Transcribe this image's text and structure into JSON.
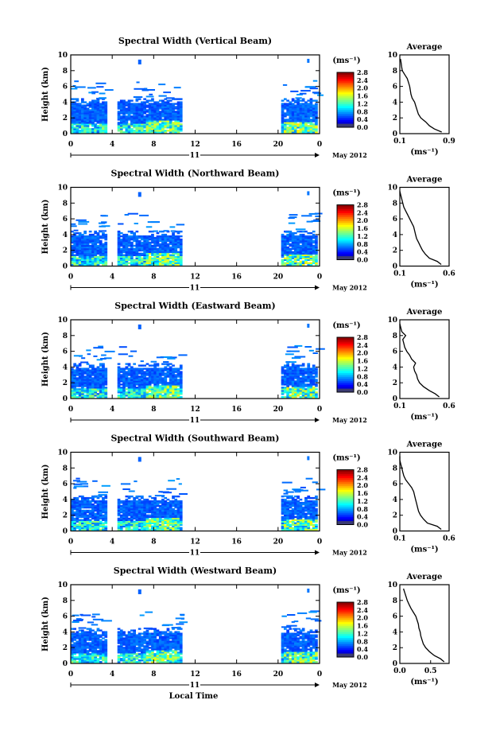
{
  "chart_data": {
    "type": "heatmap",
    "month_label": "May 2012",
    "day_label": "11",
    "xlabel": "Local Time",
    "x_ticks": [
      "0",
      "4",
      "8",
      "12",
      "16",
      "20",
      "0"
    ],
    "xlim": [
      0,
      24
    ],
    "ylabel": "Height (km)",
    "y_ticks": [
      "0",
      "2",
      "4",
      "6",
      "8",
      "10"
    ],
    "ylim": [
      0,
      10
    ],
    "colorbar": {
      "unit": "(ms⁻¹)",
      "ticks": [
        "0.0",
        "0.4",
        "0.8",
        "1.2",
        "1.6",
        "2.0",
        "2.4",
        "2.8"
      ],
      "range": [
        0.0,
        2.8
      ]
    },
    "average_title": "Average",
    "average_xlabel": "(ms⁻¹)",
    "panels": [
      {
        "title": "Spectral Width (Vertical Beam)",
        "avg_ticks": [
          "0.1",
          "0.9"
        ],
        "avg_xlim": [
          0.1,
          0.9
        ],
        "avg_profile": {
          "height": [
            0.2,
            0.6,
            1.0,
            1.5,
            2.0,
            2.5,
            3.0,
            3.5,
            4.0,
            4.5,
            5.0,
            5.5,
            6.0,
            6.5,
            7.0,
            7.5,
            8.0,
            8.5,
            9.0,
            9.5
          ],
          "width": [
            0.78,
            0.66,
            0.58,
            0.52,
            0.44,
            0.4,
            0.38,
            0.36,
            0.34,
            0.3,
            0.28,
            0.27,
            0.26,
            0.24,
            0.22,
            0.18,
            0.14,
            0.13,
            0.12,
            0.11
          ]
        }
      },
      {
        "title": "Spectral Width (Northward Beam)",
        "avg_ticks": [
          "0.1",
          "0.6"
        ],
        "avg_xlim": [
          0.1,
          0.6
        ],
        "avg_profile": {
          "height": [
            0.2,
            0.6,
            1.0,
            1.5,
            2.0,
            2.5,
            3.0,
            3.5,
            4.0,
            4.5,
            5.0,
            5.5,
            6.0,
            6.5,
            7.0,
            7.5,
            8.0,
            8.5,
            9.0,
            9.5
          ],
          "width": [
            0.52,
            0.48,
            0.4,
            0.36,
            0.33,
            0.31,
            0.29,
            0.27,
            0.26,
            0.25,
            0.24,
            0.22,
            0.2,
            0.18,
            0.16,
            0.14,
            0.13,
            0.12,
            0.11,
            0.1
          ]
        }
      },
      {
        "title": "Spectral Width (Eastward Beam)",
        "avg_ticks": [
          "0.1",
          "0.6"
        ],
        "avg_xlim": [
          0.1,
          0.6
        ],
        "avg_profile": {
          "height": [
            0.2,
            0.6,
            1.0,
            1.5,
            2.0,
            2.5,
            3.0,
            3.5,
            4.0,
            4.5,
            5.0,
            5.5,
            6.0,
            6.5,
            7.0,
            7.5,
            8.0,
            8.5,
            9.0,
            9.5
          ],
          "width": [
            0.5,
            0.46,
            0.4,
            0.34,
            0.3,
            0.28,
            0.27,
            0.25,
            0.24,
            0.26,
            0.22,
            0.2,
            0.17,
            0.15,
            0.14,
            0.13,
            0.16,
            0.12,
            0.11,
            0.1
          ]
        }
      },
      {
        "title": "Spectral Width (Southward Beam)",
        "avg_ticks": [
          "0.1",
          "0.6"
        ],
        "avg_xlim": [
          0.1,
          0.6
        ],
        "avg_profile": {
          "height": [
            0.2,
            0.6,
            1.0,
            1.5,
            2.0,
            2.5,
            3.0,
            3.5,
            4.0,
            4.5,
            5.0,
            5.5,
            6.0,
            6.5,
            7.0,
            7.5,
            8.0,
            8.5,
            9.0,
            9.5
          ],
          "width": [
            0.52,
            0.48,
            0.38,
            0.34,
            0.31,
            0.29,
            0.28,
            0.27,
            0.26,
            0.25,
            0.24,
            0.22,
            0.19,
            0.16,
            0.14,
            0.13,
            0.12,
            0.11,
            0.1,
            0.1
          ]
        }
      },
      {
        "title": "Spectral Width (Westward Beam)",
        "avg_ticks": [
          "0.0",
          "0.5"
        ],
        "avg_xlim": [
          0.0,
          0.8
        ],
        "avg_profile": {
          "height": [
            0.2,
            0.6,
            1.0,
            1.5,
            2.0,
            2.5,
            3.0,
            3.5,
            4.0,
            4.5,
            5.0,
            5.5,
            6.0,
            6.5,
            7.0,
            7.5,
            8.0,
            8.5,
            9.0,
            9.5
          ],
          "width": [
            0.72,
            0.66,
            0.56,
            0.48,
            0.42,
            0.38,
            0.36,
            0.34,
            0.33,
            0.31,
            0.3,
            0.28,
            0.26,
            0.22,
            0.18,
            0.15,
            0.12,
            0.1,
            0.08,
            0.06
          ]
        }
      }
    ]
  }
}
